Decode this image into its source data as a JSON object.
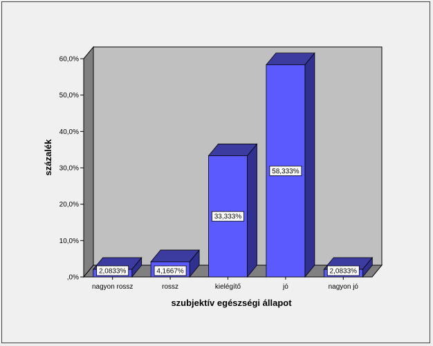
{
  "chart_data": {
    "type": "bar",
    "style": "3d",
    "categories": [
      "nagyon rossz",
      "rossz",
      "kielégítő",
      "jó",
      "nagyon jó"
    ],
    "values": [
      2.0833,
      4.1667,
      33.333,
      58.333,
      2.0833
    ],
    "data_labels": [
      "2,0833%",
      "4,1667%",
      "33,333%",
      "58,333%",
      "2,0833%"
    ],
    "xlabel": "szubjektív egészségi állapot",
    "ylabel": "százalék",
    "ylim": [
      0,
      60
    ],
    "yticks": [
      ",0%",
      "10,0%",
      "20,0%",
      "30,0%",
      "40,0%",
      "50,0%",
      "60,0%"
    ],
    "grid": false,
    "colors": {
      "bar_front": "#5a5aff",
      "bar_top": "#3c3ca0",
      "bar_side": "#303090",
      "wall": "#c0c0c0",
      "floor": "#808080",
      "side_wall": "#808080"
    }
  }
}
